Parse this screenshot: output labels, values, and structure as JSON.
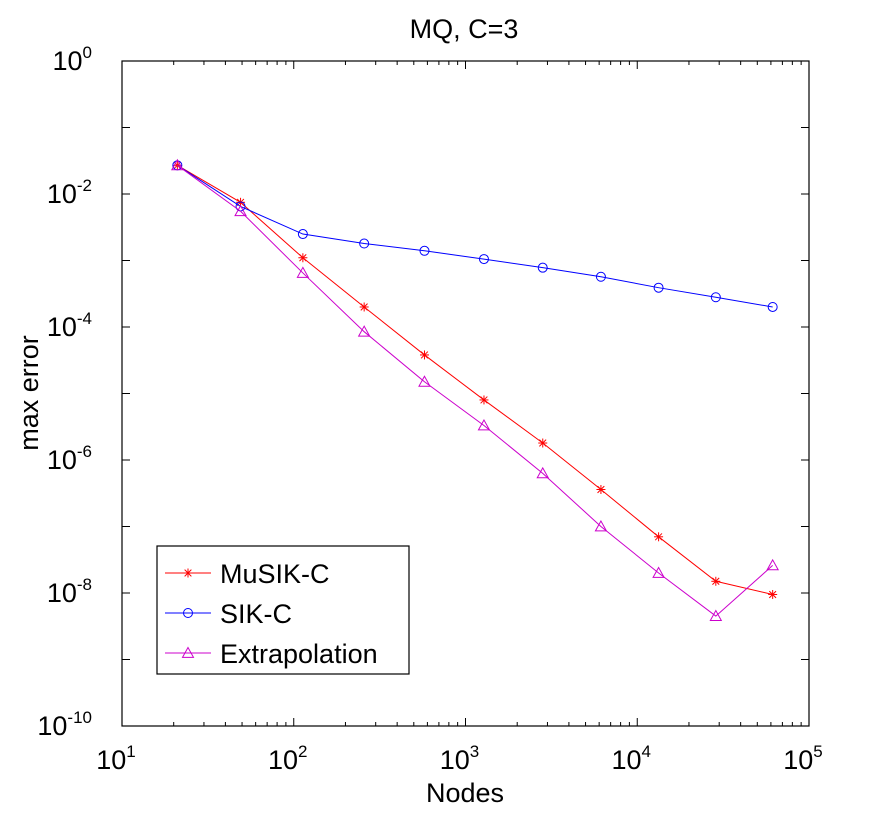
{
  "chart_data": {
    "type": "line",
    "title": "MQ, C=3",
    "xlabel": "Nodes",
    "ylabel": "max error",
    "xscale": "log",
    "yscale": "log",
    "xlim": [
      10,
      100000
    ],
    "ylim": [
      1e-10,
      1
    ],
    "x_ticks": [
      {
        "base": "10",
        "exp": "1",
        "value": 10
      },
      {
        "base": "10",
        "exp": "2",
        "value": 100
      },
      {
        "base": "10",
        "exp": "3",
        "value": 1000
      },
      {
        "base": "10",
        "exp": "4",
        "value": 10000
      },
      {
        "base": "10",
        "exp": "5",
        "value": 100000
      }
    ],
    "y_ticks": [
      {
        "base": "10",
        "exp": "0",
        "value": 1
      },
      {
        "base": "10",
        "exp": "-2",
        "value": 0.01
      },
      {
        "base": "10",
        "exp": "-4",
        "value": 0.0001
      },
      {
        "base": "10",
        "exp": "-6",
        "value": 1e-06
      },
      {
        "base": "10",
        "exp": "-8",
        "value": 1e-08
      },
      {
        "base": "10",
        "exp": "-10",
        "value": 1e-10
      }
    ],
    "x": [
      21,
      49,
      113,
      257,
      577,
      1281,
      2817,
      6145,
      13313,
      28673,
      61441
    ],
    "series": [
      {
        "name": "MuSIK-C",
        "color": "#ff0000",
        "marker": "asterisk",
        "values": [
          0.027,
          0.0075,
          0.0011,
          0.0002,
          3.8e-05,
          8e-06,
          1.8e-06,
          3.6e-07,
          7e-08,
          1.5e-08,
          9.5e-09
        ]
      },
      {
        "name": "SIK-C",
        "color": "#0000ff",
        "marker": "circle",
        "values": [
          0.027,
          0.0065,
          0.0025,
          0.0018,
          0.0014,
          0.00105,
          0.00078,
          0.00057,
          0.00039,
          0.00028,
          0.0002
        ]
      },
      {
        "name": "Extrapolation",
        "color": "#cc00cc",
        "marker": "triangle",
        "values": [
          0.027,
          0.0055,
          0.00065,
          8.5e-05,
          1.5e-05,
          3.3e-06,
          6.3e-07,
          1e-07,
          2e-08,
          4.5e-09,
          2.6e-08
        ]
      }
    ],
    "legend": {
      "position": "bottom-left",
      "entries": [
        "MuSIK-C",
        "SIK-C",
        "Extrapolation"
      ]
    },
    "grid": false
  }
}
